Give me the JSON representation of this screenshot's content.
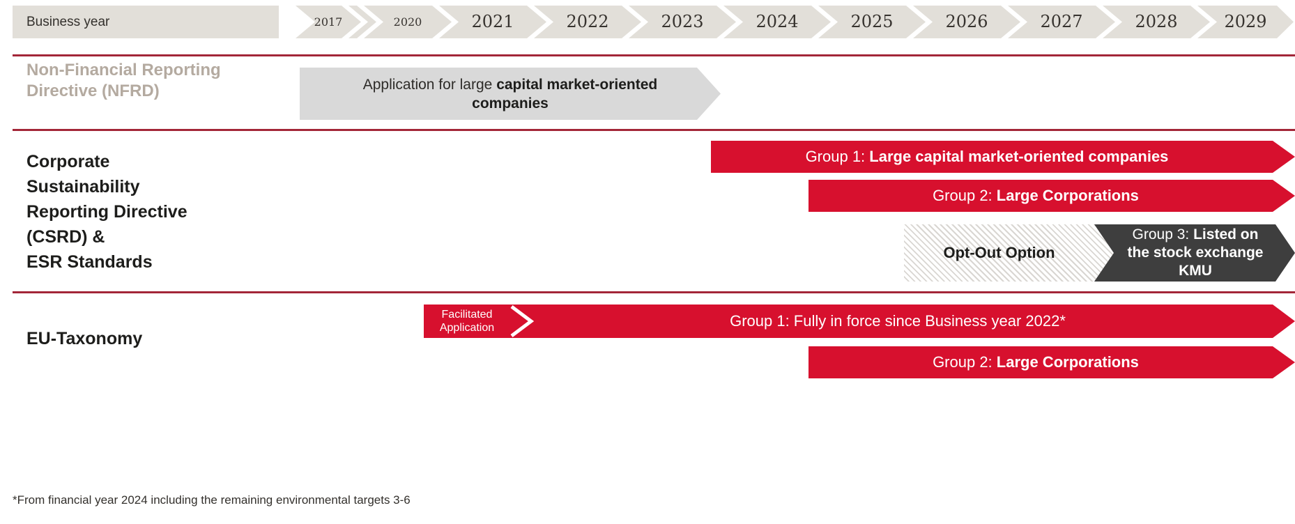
{
  "header": {
    "label": "Business year",
    "years": [
      "2017",
      "2020",
      "2021",
      "2022",
      "2023",
      "2024",
      "2025",
      "2026",
      "2027",
      "2028",
      "2029"
    ]
  },
  "nfrd": {
    "title": "Non-Financial Reporting Directive (NFRD)",
    "bar_prefix": "Application for large ",
    "bar_bold": "capital market-oriented companies"
  },
  "csrd": {
    "title_line1": "Corporate",
    "title_line2": "Sustainability",
    "title_line3": "Reporting Directive",
    "title_line4": "(CSRD) &",
    "title_line5": "ESR Standards",
    "group1_prefix": "Group 1: ",
    "group1_bold": "Large capital market-oriented companies",
    "group2_prefix": "Group 2: ",
    "group2_bold": "Large Corporations",
    "optout_label": "Opt-Out Option",
    "group3_prefix": "Group 3: ",
    "group3_bold": "Listed on the stock exchange KMU"
  },
  "taxonomy": {
    "title": "EU-Taxonomy",
    "facilitated_line1": "Facilitated",
    "facilitated_line2": "Application",
    "group1_text": "Group 1: Fully in force since Business year 2022*",
    "group2_prefix": "Group 2: ",
    "group2_bold": "Large Corporations"
  },
  "footnote": "*From financial year 2024 including the remaining environmental targets 3-6",
  "colors": {
    "red": "#d7102e",
    "dark_gray": "#3e3e3e",
    "band_beige": "#e2dfd9",
    "bar_gray": "#d9d9d9",
    "divider_red": "#a32638",
    "nfrd_title_gray": "#b4aaa0"
  }
}
